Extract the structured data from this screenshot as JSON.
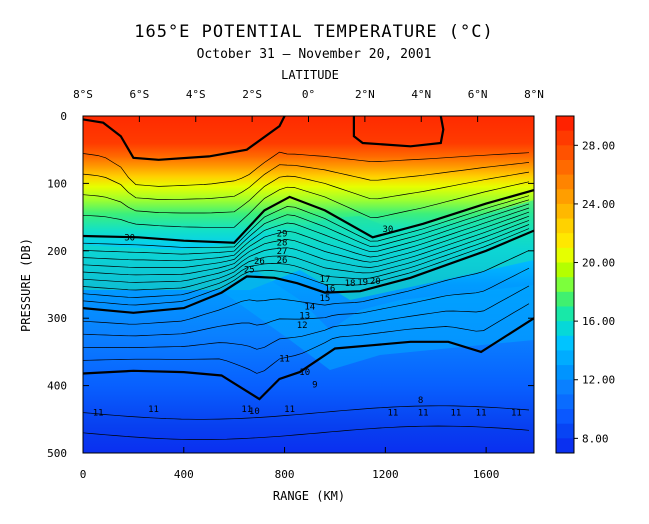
{
  "chart_data": {
    "type": "contour",
    "title": "165°E POTENTIAL TEMPERATURE (°C)",
    "subtitle": "October 31 – November 20, 2001",
    "top_axis_label": "LATITUDE",
    "top_ticks": [
      "8°S",
      "6°S",
      "4°S",
      "2°S",
      "0°",
      "2°N",
      "4°N",
      "6°N",
      "8°N"
    ],
    "xlabel": "RANGE (KM)",
    "ylabel": "PRESSURE (DB)",
    "x_ticks": [
      0,
      400,
      800,
      1200,
      1600
    ],
    "y_ticks": [
      0,
      100,
      200,
      300,
      400,
      500
    ],
    "xlim": [
      0,
      1790
    ],
    "ylim": [
      500,
      0
    ],
    "colorbar": {
      "min": 7,
      "max": 30,
      "tick_labels": [
        "28.00",
        "24.00",
        "20.00",
        "16.00",
        "12.00",
        "8.00"
      ],
      "tick_values": [
        28,
        24,
        20,
        16,
        12,
        8
      ]
    },
    "contour_labels": [
      {
        "text": "30",
        "x": 185,
        "y": 180
      },
      {
        "text": "30",
        "x": 1210,
        "y": 168
      },
      {
        "text": "29",
        "x": 790,
        "y": 174
      },
      {
        "text": "28",
        "x": 790,
        "y": 188
      },
      {
        "text": "27",
        "x": 790,
        "y": 200
      },
      {
        "text": "26",
        "x": 790,
        "y": 214
      },
      {
        "text": "25",
        "x": 660,
        "y": 228
      },
      {
        "text": "26",
        "x": 700,
        "y": 215
      },
      {
        "text": "17",
        "x": 960,
        "y": 242
      },
      {
        "text": "18",
        "x": 1060,
        "y": 248
      },
      {
        "text": "16",
        "x": 980,
        "y": 256
      },
      {
        "text": "19",
        "x": 1110,
        "y": 246
      },
      {
        "text": "20",
        "x": 1160,
        "y": 245
      },
      {
        "text": "15",
        "x": 960,
        "y": 270
      },
      {
        "text": "14",
        "x": 900,
        "y": 283
      },
      {
        "text": "13",
        "x": 880,
        "y": 296
      },
      {
        "text": "12",
        "x": 870,
        "y": 310
      },
      {
        "text": "11",
        "x": 800,
        "y": 360
      },
      {
        "text": "10",
        "x": 880,
        "y": 380
      },
      {
        "text": "9",
        "x": 920,
        "y": 398
      },
      {
        "text": "8",
        "x": 1340,
        "y": 421
      },
      {
        "text": "11",
        "x": 60,
        "y": 440
      },
      {
        "text": "11",
        "x": 280,
        "y": 435
      },
      {
        "text": "11",
        "x": 650,
        "y": 435
      },
      {
        "text": "10",
        "x": 680,
        "y": 438
      },
      {
        "text": "11",
        "x": 820,
        "y": 435
      },
      {
        "text": "11",
        "x": 1230,
        "y": 440
      },
      {
        "text": "11",
        "x": 1350,
        "y": 440
      },
      {
        "text": "11",
        "x": 1480,
        "y": 440
      },
      {
        "text": "11",
        "x": 1580,
        "y": 440
      },
      {
        "text": "11",
        "x": 1720,
        "y": 440
      }
    ],
    "thick_isotherms": [
      {
        "value": 30,
        "points": [
          [
            0,
            5
          ],
          [
            80,
            10
          ],
          [
            150,
            30
          ],
          [
            200,
            62
          ],
          [
            300,
            65
          ],
          [
            500,
            60
          ],
          [
            650,
            50
          ],
          [
            780,
            15
          ],
          [
            800,
            0
          ]
        ]
      },
      {
        "value": 30,
        "points": [
          [
            1075,
            0
          ],
          [
            1075,
            30
          ],
          [
            1110,
            40
          ],
          [
            1300,
            45
          ],
          [
            1420,
            40
          ],
          [
            1430,
            20
          ],
          [
            1420,
            0
          ]
        ]
      },
      {
        "value": 25,
        "points": [
          [
            0,
            178
          ],
          [
            220,
            180
          ],
          [
            400,
            185
          ],
          [
            600,
            188
          ],
          [
            720,
            140
          ],
          [
            820,
            120
          ],
          [
            960,
            140
          ],
          [
            1150,
            180
          ],
          [
            1350,
            160
          ],
          [
            1600,
            130
          ],
          [
            1790,
            110
          ]
        ]
      },
      {
        "value": 15,
        "points": [
          [
            0,
            285
          ],
          [
            200,
            292
          ],
          [
            400,
            285
          ],
          [
            550,
            262
          ],
          [
            650,
            238
          ],
          [
            760,
            240
          ],
          [
            850,
            248
          ],
          [
            960,
            262
          ],
          [
            1100,
            260
          ],
          [
            1300,
            240
          ],
          [
            1600,
            200
          ],
          [
            1790,
            170
          ]
        ]
      },
      {
        "value": 10,
        "points": [
          [
            0,
            382
          ],
          [
            200,
            378
          ],
          [
            400,
            380
          ],
          [
            550,
            385
          ],
          [
            700,
            420
          ],
          [
            780,
            390
          ],
          [
            860,
            380
          ],
          [
            1000,
            345
          ],
          [
            1150,
            340
          ],
          [
            1300,
            335
          ],
          [
            1450,
            335
          ],
          [
            1580,
            350
          ],
          [
            1790,
            300
          ]
        ]
      }
    ]
  }
}
